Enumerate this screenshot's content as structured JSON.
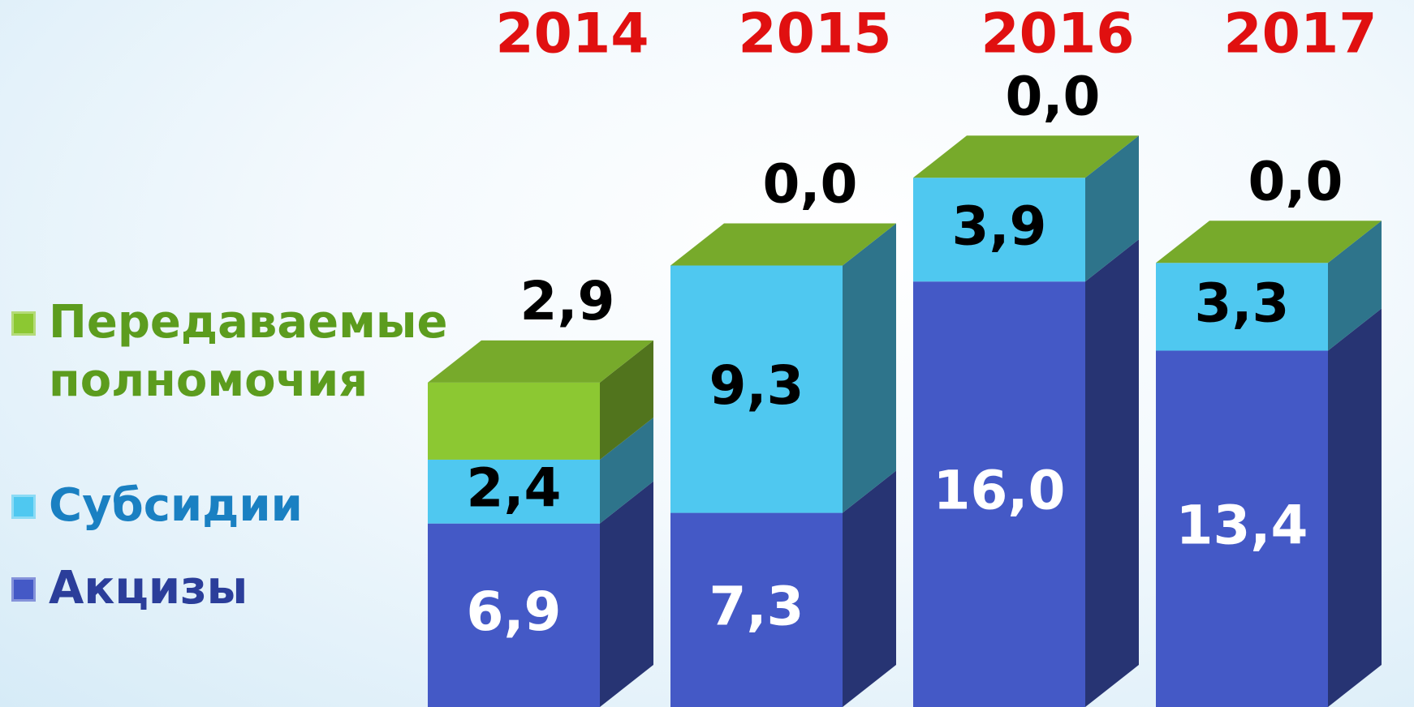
{
  "chart_data": {
    "type": "bar3d_stacked",
    "categories": [
      "2014",
      "2015",
      "2016",
      "2017"
    ],
    "series": [
      {
        "name": "Акцизы",
        "color": "#4459c6",
        "values": [
          6.9,
          7.3,
          16.0,
          13.4
        ],
        "value_labels": [
          "6,9",
          "7,3",
          "16,0",
          "13,4"
        ]
      },
      {
        "name": "Субсидии",
        "color": "#4fc8f0",
        "values": [
          2.4,
          9.3,
          3.9,
          3.3
        ],
        "value_labels": [
          "2,4",
          "9,3",
          "3,9",
          "3,3"
        ]
      },
      {
        "name": "Передаваемые полномочия",
        "color": "#8cc832",
        "values": [
          2.9,
          0.0,
          0.0,
          0.0
        ],
        "value_labels": [
          "2,9",
          "0,0",
          "0,0",
          "0,0"
        ]
      }
    ]
  }
}
